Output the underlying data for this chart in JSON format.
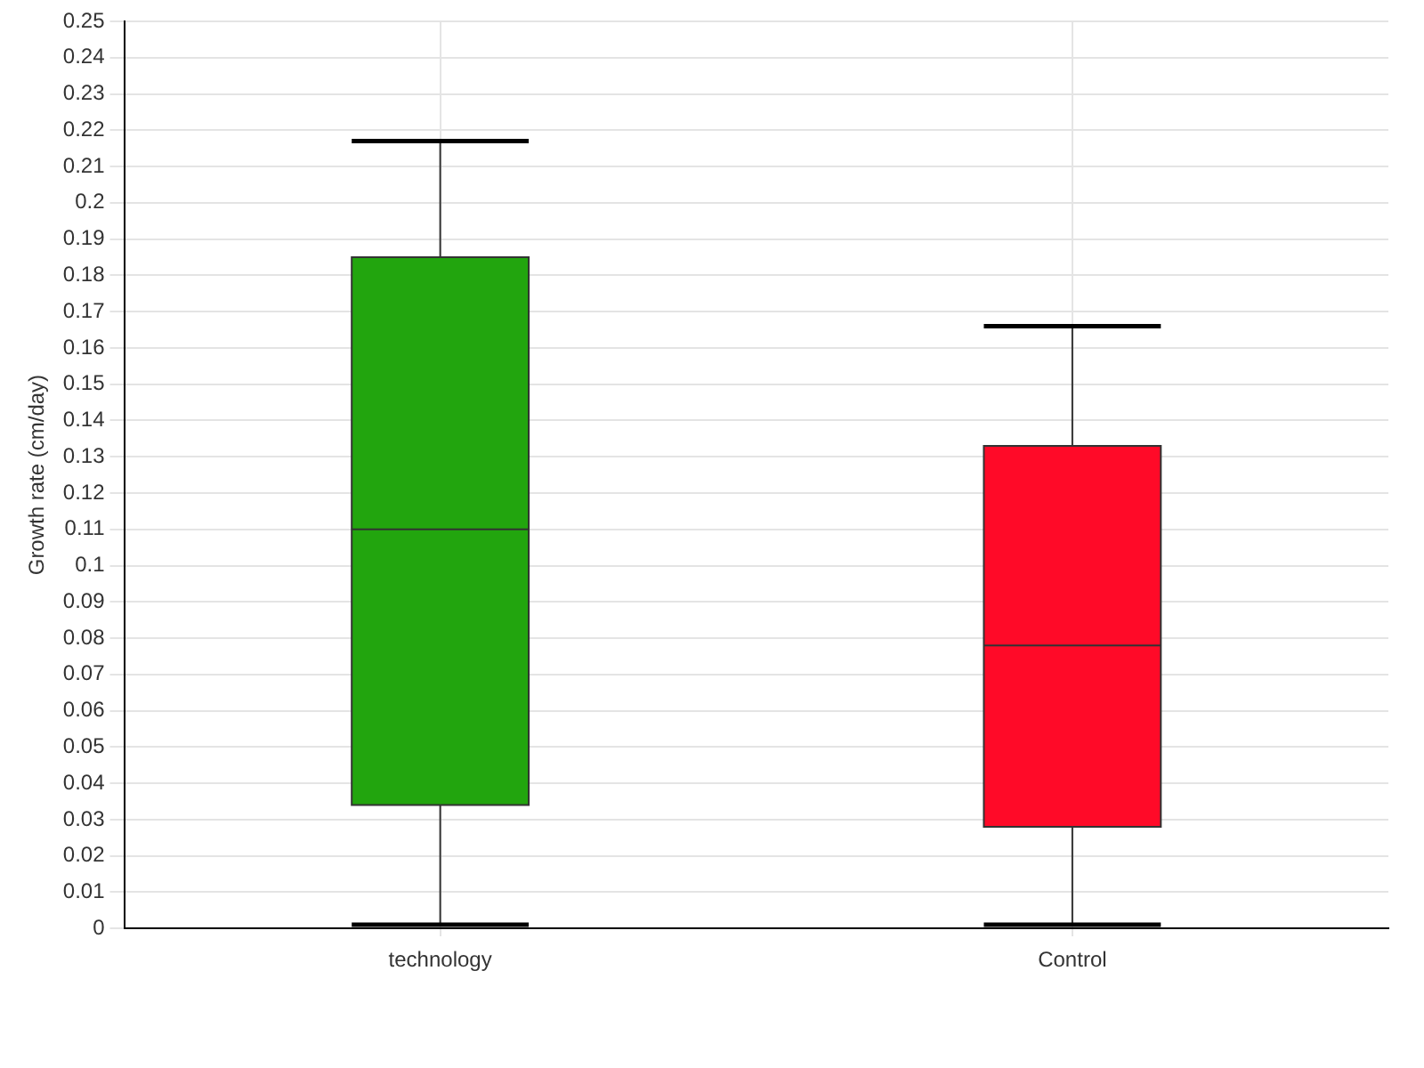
{
  "chart_data": {
    "type": "box",
    "ylabel": "Growth rate (cm/day)",
    "categories": [
      "technology",
      "Control"
    ],
    "boxes": [
      {
        "low": 0.001,
        "q1": 0.034,
        "median": 0.11,
        "q3": 0.185,
        "high": 0.217
      },
      {
        "low": 0.001,
        "q1": 0.028,
        "median": 0.078,
        "q3": 0.133,
        "high": 0.166
      }
    ],
    "colors": [
      "#22a50e",
      "#ff0a28"
    ],
    "ylim": [
      0,
      0.25
    ],
    "yticks": [
      0,
      0.01,
      0.02,
      0.03,
      0.04,
      0.05,
      0.06,
      0.07,
      0.08,
      0.09,
      0.1,
      0.11,
      0.12,
      0.13,
      0.14,
      0.15,
      0.16,
      0.17,
      0.18,
      0.19,
      0.2,
      0.21,
      0.22,
      0.23,
      0.24,
      0.25
    ],
    "grid": true,
    "legend": false
  }
}
